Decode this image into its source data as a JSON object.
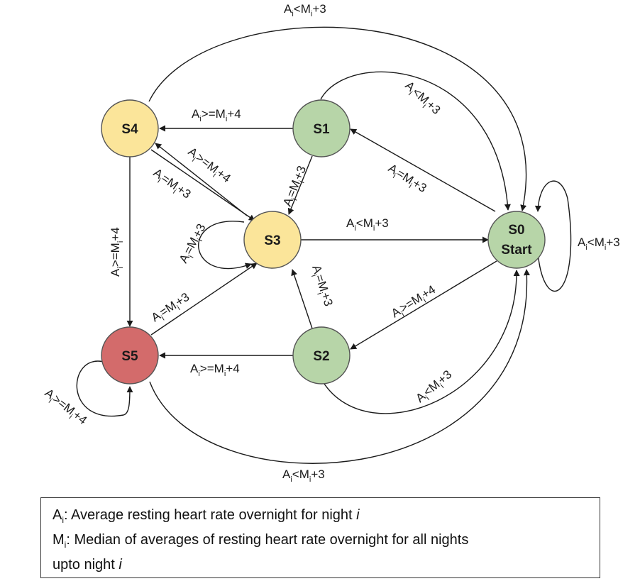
{
  "nodes": {
    "s0": {
      "name": "S0",
      "sub": "Start",
      "color": "#b7d5a8"
    },
    "s1": {
      "name": "S1",
      "color": "#b7d5a8"
    },
    "s2": {
      "name": "S2",
      "color": "#b7d5a8"
    },
    "s3": {
      "name": "S3",
      "color": "#fbe59a"
    },
    "s4": {
      "name": "S4",
      "color": "#fbe59a"
    },
    "s5": {
      "name": "S5",
      "color": "#d36b6b"
    }
  },
  "edges": {
    "s4_s0": {
      "a": "A",
      "i1": "i",
      "op": "<M",
      "i2": "i",
      "tail": "+3"
    },
    "s1_s0": {
      "a": "A",
      "i1": "i",
      "op": "<M",
      "i2": "i",
      "tail": "+3"
    },
    "s0_s1": {
      "a": "A",
      "i1": "i",
      "op": "=M",
      "i2": "i",
      "tail": "+3"
    },
    "s1_s4": {
      "a": "A",
      "i1": "i",
      "op": ">=M",
      "i2": "i",
      "tail": "+4"
    },
    "s1_s3": {
      "a": "A",
      "i1": "i",
      "op": "=M",
      "i2": "i",
      "tail": "+3"
    },
    "s3_s4": {
      "a": "A",
      "i1": "i",
      "op": ">=M",
      "i2": "i",
      "tail": "+4"
    },
    "s4_s3": {
      "a": "A",
      "i1": "i",
      "op": "=M",
      "i2": "i",
      "tail": "+3"
    },
    "s3_s3": {
      "a": "A",
      "i1": "i",
      "op": "=M",
      "i2": "i",
      "tail": "+3"
    },
    "s3_s0": {
      "a": "A",
      "i1": "i",
      "op": "<M",
      "i2": "i",
      "tail": "+3"
    },
    "s0_s0": {
      "a": "A",
      "i1": "i",
      "op": "<M",
      "i2": "i",
      "tail": "+3"
    },
    "s4_s5": {
      "a": "A",
      "i1": "i",
      "op": ">=M",
      "i2": "i",
      "tail": "+4"
    },
    "s5_s3": {
      "a": "A",
      "i1": "i",
      "op": "=M",
      "i2": "i",
      "tail": "+3"
    },
    "s2_s3": {
      "a": "A",
      "i1": "i",
      "op": "=M",
      "i2": "i",
      "tail": "+3"
    },
    "s0_s2": {
      "a": "A",
      "i1": "i",
      "op": ">=M",
      "i2": "i",
      "tail": "+4"
    },
    "s2_s5": {
      "a": "A",
      "i1": "i",
      "op": ">=M",
      "i2": "i",
      "tail": "+4"
    },
    "s2_s0": {
      "a": "A",
      "i1": "i",
      "op": "<M",
      "i2": "i",
      "tail": "+3"
    },
    "s5_s5": {
      "a": "A",
      "i1": "i",
      "op": ">=M",
      "i2": "i",
      "tail": "+4"
    },
    "s5_s0": {
      "a": "A",
      "i1": "i",
      "op": "<M",
      "i2": "i",
      "tail": "+3"
    }
  },
  "legend": {
    "a_var": "A",
    "a_sub": "i",
    "a_text": ": Average resting heart rate overnight for night ",
    "a_end": "i",
    "m_var": "M",
    "m_sub": "i",
    "m_text": ": Median of averages of resting heart rate overnight for all nights",
    "m_line2": "upto night ",
    "m_end": "i"
  }
}
